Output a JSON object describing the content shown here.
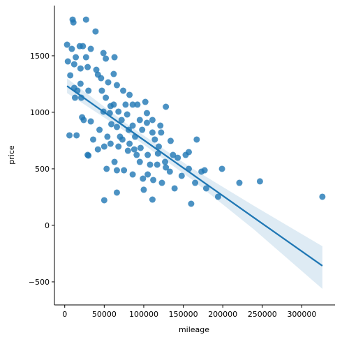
{
  "chart_data": {
    "type": "scatter",
    "xlabel": "mileage",
    "ylabel": "price",
    "color": "#1f77b4",
    "xlim": [
      -13000,
      342000
    ],
    "ylim": [
      -704,
      1944
    ],
    "xticks": [
      0,
      50000,
      100000,
      150000,
      200000,
      250000,
      300000
    ],
    "yticks": [
      {
        "value": -500,
        "label": "−500"
      },
      0,
      500,
      1000,
      1500
    ],
    "x": [
      3000,
      10000,
      11000,
      27000,
      39000,
      4000,
      9000,
      14000,
      19000,
      23000,
      33000,
      49000,
      52000,
      63000,
      7000,
      12000,
      20000,
      27000,
      29000,
      40000,
      42000,
      20000,
      12000,
      21000,
      30000,
      46000,
      55000,
      62000,
      66000,
      74000,
      82000,
      92000,
      102000,
      128000,
      6000,
      15000,
      24000,
      22000,
      33000,
      36000,
      44000,
      49000,
      57000,
      59000,
      62000,
      66000,
      70000,
      72000,
      79000,
      81000,
      86000,
      89000,
      95000,
      98000,
      104000,
      111000,
      114000,
      119000,
      122000,
      134000,
      137000,
      143000,
      153000,
      157000,
      167000,
      29000,
      50000,
      53000,
      63000,
      66000,
      75000,
      80000,
      86000,
      91000,
      95000,
      99000,
      100000,
      105000,
      108000,
      112000,
      117000,
      123000,
      128000,
      133000,
      139000,
      148000,
      157000,
      165000,
      173000,
      177000,
      179000,
      199000,
      194000,
      221000,
      247000,
      160000,
      326000,
      50000,
      111000,
      66000,
      30000,
      42000,
      54000,
      58000,
      68000,
      73000,
      82000,
      88000,
      96000,
      105000,
      118000,
      127000,
      13000,
      16000,
      47000,
      52000,
      58000,
      68000,
      77000,
      86000,
      104000,
      111000,
      121000
    ],
    "values": [
      1598,
      1820,
      1795,
      1820,
      1715,
      1450,
      1561,
      1487,
      1585,
      1585,
      1561,
      1524,
      1475,
      1487,
      1327,
      1425,
      1388,
      1487,
      1400,
      1376,
      1333,
      1253,
      1216,
      1129,
      1191,
      1302,
      1265,
      1339,
      1240,
      1191,
      1154,
      1068,
      1092,
      1049,
      796,
      796,
      932,
      956,
      919,
      759,
      845,
      1006,
      993,
      895,
      1068,
      870,
      784,
      932,
      981,
      845,
      882,
      784,
      932,
      845,
      907,
      821,
      759,
      697,
      821,
      747,
      623,
      598,
      623,
      648,
      759,
      623,
      697,
      500,
      561,
      487,
      487,
      660,
      450,
      623,
      561,
      413,
      315,
      450,
      537,
      401,
      537,
      376,
      512,
      475,
      327,
      438,
      500,
      376,
      475,
      487,
      327,
      500,
      253,
      376,
      389,
      191,
      253,
      222,
      228,
      290,
      617,
      672,
      784,
      722,
      697,
      759,
      722,
      672,
      685,
      623,
      635,
      561,
      1129,
      1191,
      1191,
      1129,
      1055,
      1006,
      1068,
      1068,
      993,
      932,
      882
    ],
    "fit": {
      "x": [
        3000,
        80000,
        160000,
        240000,
        326000
      ],
      "values": [
        1232,
        853,
        459,
        65,
        -358
      ],
      "lower": [
        1170,
        815,
        410,
        -40,
        -562
      ],
      "upper": [
        1300,
        890,
        510,
        170,
        -185
      ]
    }
  }
}
